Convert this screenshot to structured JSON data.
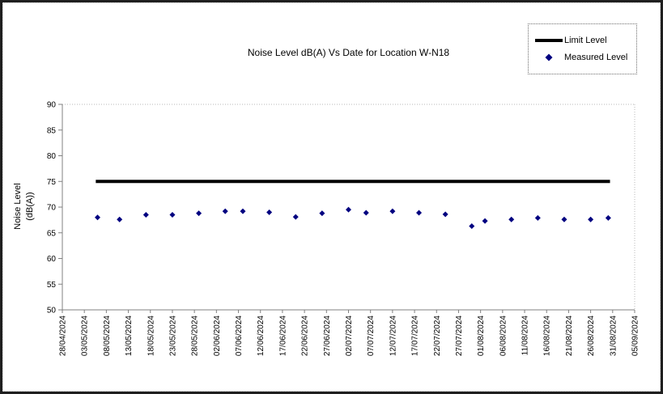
{
  "chart_data": {
    "type": "scatter",
    "title": "Noise Level dB(A) Vs Date for Location W-N18",
    "ylabel": "Noise Level (dB(A))",
    "ylabel_lines": [
      "Noise Level",
      "(dB(A))"
    ],
    "ylim": [
      50,
      90
    ],
    "yticks": [
      50,
      55,
      60,
      65,
      70,
      75,
      80,
      85,
      90
    ],
    "xtick_interval_days": 5,
    "x_span_days": 130,
    "xtick_labels": [
      "28/04/2024",
      "03/05/2024",
      "08/05/2024",
      "13/05/2024",
      "18/05/2024",
      "23/05/2024",
      "28/05/2024",
      "02/06/2024",
      "07/06/2024",
      "12/06/2024",
      "17/06/2024",
      "22/06/2024",
      "27/06/2024",
      "02/07/2024",
      "07/07/2024",
      "12/07/2024",
      "17/07/2024",
      "22/07/2024",
      "27/07/2024",
      "01/08/2024",
      "06/08/2024",
      "11/08/2024",
      "16/08/2024",
      "21/08/2024",
      "26/08/2024",
      "31/08/2024",
      "05/09/2024"
    ],
    "grid": false,
    "legend": {
      "position": "top-right",
      "entries": [
        {
          "label": "Limit Level",
          "marker": "line",
          "color": "#000000"
        },
        {
          "label": "Measured Level",
          "marker": "diamond",
          "color": "#000080"
        }
      ]
    },
    "series": [
      {
        "name": "Limit Level",
        "type": "line",
        "color": "#000000",
        "value": 75,
        "start_day": 7.6,
        "end_day": 124.4
      },
      {
        "name": "Measured Level",
        "type": "scatter",
        "color": "#000080",
        "points": [
          {
            "day": 8,
            "date": "06/05/2024",
            "value": 68.0
          },
          {
            "day": 13,
            "date": "11/05/2024",
            "value": 67.6
          },
          {
            "day": 19,
            "date": "17/05/2024",
            "value": 68.5
          },
          {
            "day": 25,
            "date": "23/05/2024",
            "value": 68.5
          },
          {
            "day": 31,
            "date": "29/05/2024",
            "value": 68.8
          },
          {
            "day": 37,
            "date": "04/06/2024",
            "value": 69.2
          },
          {
            "day": 41,
            "date": "08/06/2024",
            "value": 69.2
          },
          {
            "day": 47,
            "date": "14/06/2024",
            "value": 69.0
          },
          {
            "day": 53,
            "date": "20/06/2024",
            "value": 68.1
          },
          {
            "day": 59,
            "date": "26/06/2024",
            "value": 68.8
          },
          {
            "day": 65,
            "date": "02/07/2024",
            "value": 69.5
          },
          {
            "day": 69,
            "date": "06/07/2024",
            "value": 68.9
          },
          {
            "day": 75,
            "date": "12/07/2024",
            "value": 69.2
          },
          {
            "day": 81,
            "date": "18/07/2024",
            "value": 68.9
          },
          {
            "day": 87,
            "date": "24/07/2024",
            "value": 68.6
          },
          {
            "day": 93,
            "date": "30/07/2024",
            "value": 66.3
          },
          {
            "day": 96,
            "date": "02/08/2024",
            "value": 67.3
          },
          {
            "day": 102,
            "date": "08/08/2024",
            "value": 67.6
          },
          {
            "day": 108,
            "date": "14/08/2024",
            "value": 67.9
          },
          {
            "day": 114,
            "date": "20/08/2024",
            "value": 67.6
          },
          {
            "day": 120,
            "date": "26/08/2024",
            "value": 67.6
          },
          {
            "day": 124,
            "date": "30/08/2024",
            "value": 67.9
          }
        ]
      }
    ]
  },
  "colors": {
    "measured": "#000080",
    "limit": "#000000",
    "axis": "#808080",
    "plot_border_dotted": "#b8b8b8",
    "text": "#000000"
  }
}
